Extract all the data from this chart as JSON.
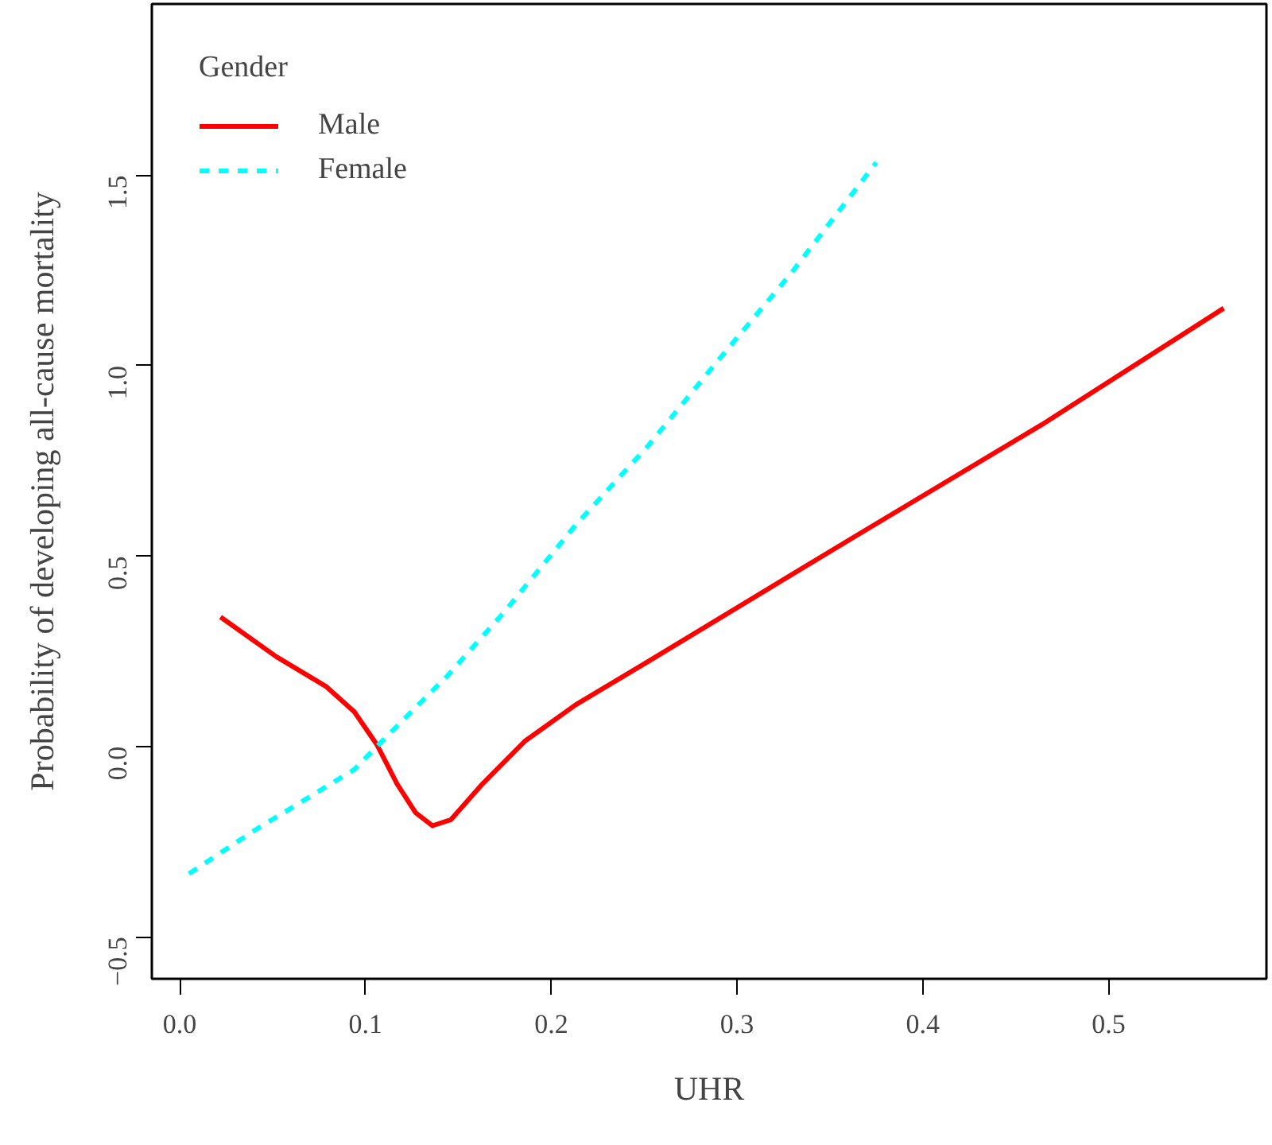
{
  "chart_data": {
    "type": "line",
    "xlabel": "UHR",
    "ylabel": "Probability of developing all-cause mortality",
    "legend_title": "Gender",
    "legend": "top left",
    "grid": false,
    "xlim": [
      -0.015,
      0.585
    ],
    "ylim": [
      -0.61,
      1.95
    ],
    "xticks": [
      {
        "value": 0,
        "label": "0.0"
      },
      0.1,
      0.2,
      0.3,
      0.4,
      0.5
    ],
    "yticks": [
      -0.5,
      {
        "value": 0,
        "label": "0.0"
      },
      0.5,
      {
        "value": 1,
        "label": "1.0"
      },
      1.5
    ],
    "series": [
      {
        "name": "Male",
        "color": "#ff0000",
        "line_style": "solid",
        "x": [
          0.022,
          0.052,
          0.079,
          0.094,
          0.106,
          0.117,
          0.127,
          0.136,
          0.146,
          0.163,
          0.186,
          0.213,
          0.252,
          0.367,
          0.464,
          0.562
        ],
        "values": [
          0.34,
          0.236,
          0.157,
          0.091,
          0.006,
          -0.098,
          -0.174,
          -0.208,
          -0.192,
          -0.098,
          0.015,
          0.109,
          0.223,
          0.562,
          0.845,
          1.151
        ]
      },
      {
        "name": "Female",
        "color": "#00ffff",
        "line_style": "dashed",
        "x": [
          0.005,
          0.04,
          0.075,
          0.094,
          0.113,
          0.144,
          0.175,
          0.213,
          0.252,
          0.29,
          0.329,
          0.375
        ],
        "values": [
          -0.334,
          -0.221,
          -0.117,
          -0.06,
          0.034,
          0.185,
          0.355,
          0.581,
          0.789,
          1.015,
          1.242,
          1.534
        ]
      }
    ]
  }
}
